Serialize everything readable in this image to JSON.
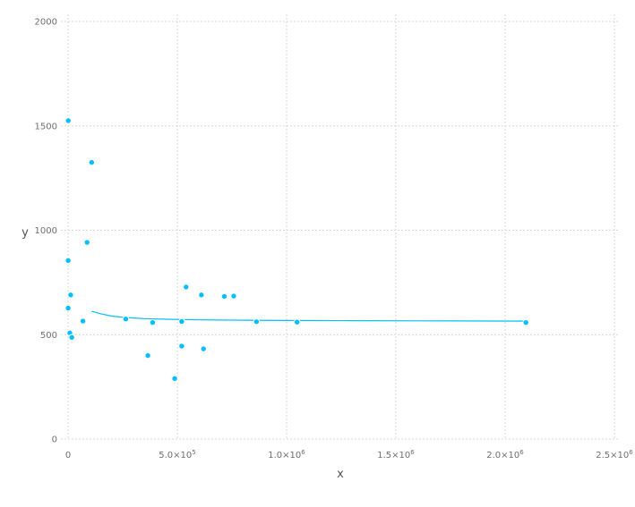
{
  "chart_data": {
    "type": "scatter",
    "title": "",
    "xlabel": "x",
    "ylabel": "y",
    "xlim": [
      0,
      2500000
    ],
    "ylim": [
      0,
      2000
    ],
    "grid": true,
    "x_ticks": [
      {
        "value": 0,
        "label": "0",
        "mant": "",
        "exp": ""
      },
      {
        "value": 500000,
        "label": "5.0×10⁵",
        "mant": "5.0×10",
        "exp": "5"
      },
      {
        "value": 1000000,
        "label": "1.0×10⁶",
        "mant": "1.0×10",
        "exp": "6"
      },
      {
        "value": 1500000,
        "label": "1.5×10⁶",
        "mant": "1.5×10",
        "exp": "6"
      },
      {
        "value": 2000000,
        "label": "2.0×10⁶",
        "mant": "2.0×10",
        "exp": "6"
      },
      {
        "value": 2500000,
        "label": "2.5×10⁶",
        "mant": "2.5×10",
        "exp": "6"
      }
    ],
    "y_ticks": [
      {
        "value": 0,
        "label": "0"
      },
      {
        "value": 500,
        "label": "500"
      },
      {
        "value": 1000,
        "label": "1000"
      },
      {
        "value": 1500,
        "label": "1500"
      },
      {
        "value": 2000,
        "label": "2000"
      }
    ],
    "color": "#00bfff",
    "series": [
      {
        "points": [
          [
            1000,
            1525
          ],
          [
            500,
            855
          ],
          [
            500,
            627
          ],
          [
            8000,
            508
          ],
          [
            12000,
            690
          ],
          [
            17000,
            487
          ],
          [
            68000,
            565
          ],
          [
            87000,
            942
          ],
          [
            108000,
            1325
          ],
          [
            264000,
            575
          ],
          [
            387000,
            558
          ],
          [
            365000,
            400
          ],
          [
            488000,
            290
          ],
          [
            520000,
            563
          ],
          [
            520000,
            445
          ],
          [
            540000,
            728
          ],
          [
            610000,
            690
          ],
          [
            620000,
            432
          ],
          [
            715000,
            683
          ],
          [
            758000,
            685
          ],
          [
            862000,
            562
          ],
          [
            1048000,
            560
          ],
          [
            2095000,
            558
          ]
        ]
      }
    ],
    "fit_line": [
      [
        108000,
        612
      ],
      [
        150000,
        600
      ],
      [
        200000,
        589
      ],
      [
        260000,
        582
      ],
      [
        350000,
        577
      ],
      [
        450000,
        574
      ],
      [
        600000,
        571
      ],
      [
        800000,
        569
      ],
      [
        1000000,
        568
      ],
      [
        1300000,
        567
      ],
      [
        1600000,
        566
      ],
      [
        2095000,
        565
      ]
    ]
  }
}
